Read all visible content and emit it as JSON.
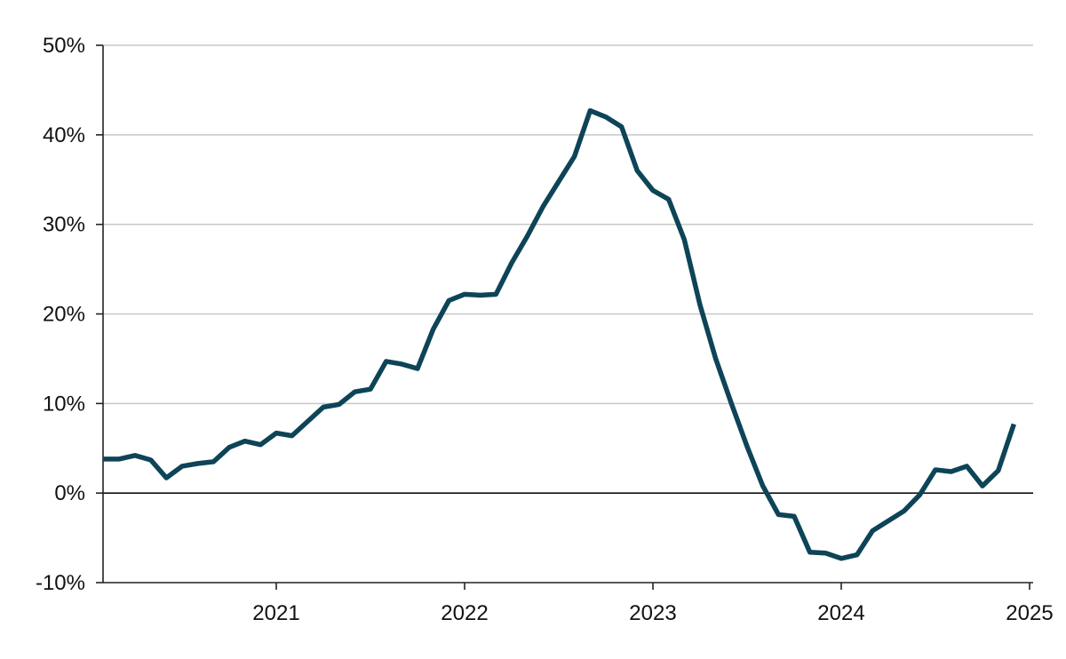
{
  "chart_data": {
    "type": "line",
    "title": "",
    "xlabel": "",
    "ylabel": "",
    "x_tick_labels": [
      "2021",
      "2022",
      "2023",
      "2024",
      "2025"
    ],
    "y_tick_labels": [
      "50%",
      "40%",
      "30%",
      "20%",
      "10%",
      "0%",
      "-10%"
    ],
    "ylim": [
      -10,
      50
    ],
    "xlim": [
      "2020-02",
      "2025-01"
    ],
    "grid": true,
    "legend": "none",
    "line_color": "#0d4457",
    "series": [
      {
        "values_unit": "percent",
        "x": [
          "2020-02",
          "2020-03",
          "2020-04",
          "2020-05",
          "2020-06",
          "2020-07",
          "2020-08",
          "2020-09",
          "2020-10",
          "2020-11",
          "2020-12",
          "2021-01",
          "2021-02",
          "2021-03",
          "2021-04",
          "2021-05",
          "2021-06",
          "2021-07",
          "2021-08",
          "2021-09",
          "2021-10",
          "2021-11",
          "2021-12",
          "2022-01",
          "2022-02",
          "2022-03",
          "2022-04",
          "2022-05",
          "2022-06",
          "2022-07",
          "2022-08",
          "2022-09",
          "2022-10",
          "2022-11",
          "2022-12",
          "2023-01",
          "2023-02",
          "2023-03",
          "2023-04",
          "2023-05",
          "2023-06",
          "2023-07",
          "2023-08",
          "2023-09",
          "2023-10",
          "2023-11",
          "2023-12",
          "2024-01",
          "2024-02",
          "2024-03",
          "2024-04",
          "2024-05",
          "2024-06",
          "2024-07",
          "2024-08",
          "2024-09",
          "2024-10",
          "2024-11",
          "2024-12"
        ],
        "values": [
          3.8,
          3.8,
          4.2,
          3.7,
          1.7,
          3.0,
          3.3,
          3.5,
          5.1,
          5.8,
          5.4,
          6.7,
          6.4,
          8.0,
          9.6,
          9.9,
          11.3,
          11.6,
          14.7,
          14.4,
          13.9,
          18.3,
          21.5,
          22.2,
          22.1,
          22.2,
          25.7,
          28.7,
          32.0,
          34.8,
          37.6,
          42.7,
          42.0,
          40.9,
          36.0,
          33.8,
          32.8,
          28.3,
          21.0,
          15.0,
          10.0,
          5.2,
          0.8,
          -2.4,
          -2.6,
          -6.6,
          -6.7,
          -7.3,
          -6.9,
          -4.2,
          -3.1,
          -2.0,
          -0.2,
          2.6,
          2.4,
          3.0,
          0.8,
          2.5,
          7.7
        ]
      }
    ]
  }
}
